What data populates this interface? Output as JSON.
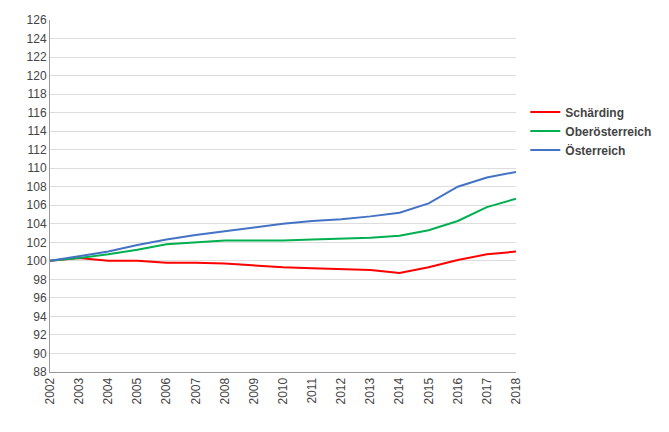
{
  "chart_data": {
    "type": "line",
    "x": [
      2002,
      2003,
      2004,
      2005,
      2006,
      2007,
      2008,
      2009,
      2010,
      2011,
      2012,
      2013,
      2014,
      2015,
      2016,
      2017,
      2018
    ],
    "series": [
      {
        "name": "Schärding",
        "color": "#ff0000",
        "values": [
          100.0,
          100.3,
          100.0,
          100.0,
          99.8,
          99.8,
          99.7,
          99.5,
          99.3,
          99.2,
          99.1,
          99.0,
          98.7,
          99.3,
          100.1,
          100.7,
          101.0
        ]
      },
      {
        "name": "Oberösterreich",
        "color": "#00b050",
        "values": [
          100.0,
          100.3,
          100.7,
          101.2,
          101.8,
          102.0,
          102.2,
          102.2,
          102.2,
          102.3,
          102.4,
          102.5,
          102.7,
          103.3,
          104.3,
          105.8,
          106.7
        ]
      },
      {
        "name": "Österreich",
        "color": "#4472c4",
        "values": [
          100.0,
          100.5,
          101.0,
          101.7,
          102.3,
          102.8,
          103.2,
          103.6,
          104.0,
          104.3,
          104.5,
          104.8,
          105.2,
          106.2,
          108.0,
          109.0,
          109.6
        ]
      }
    ],
    "xlim": [
      2002,
      2018
    ],
    "xticks": [
      2002,
      2003,
      2004,
      2005,
      2006,
      2007,
      2008,
      2009,
      2010,
      2011,
      2012,
      2013,
      2014,
      2015,
      2016,
      2017,
      2018
    ],
    "ylim": [
      88,
      126
    ],
    "yticks": [
      88,
      90,
      92,
      94,
      96,
      98,
      100,
      102,
      104,
      106,
      108,
      110,
      112,
      114,
      116,
      118,
      120,
      122,
      124,
      126
    ],
    "grid": "y",
    "legend": "right"
  }
}
